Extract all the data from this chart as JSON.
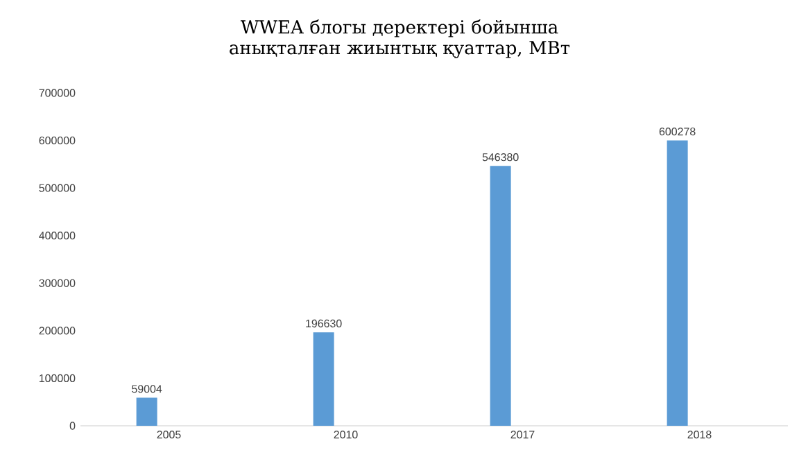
{
  "chart_data": {
    "type": "bar",
    "title": "WWEA блогы деректері бойынша анықталған жиынтық қуаттар, МВт",
    "categories": [
      "2005",
      "2010",
      "2017",
      "2018"
    ],
    "values": [
      59004,
      196630,
      546380,
      600278
    ],
    "color": "#5b9bd5",
    "data_labels": true,
    "ylim": [
      0,
      700000
    ],
    "yticks": [
      0,
      100000,
      200000,
      300000,
      400000,
      500000,
      600000,
      700000
    ]
  }
}
